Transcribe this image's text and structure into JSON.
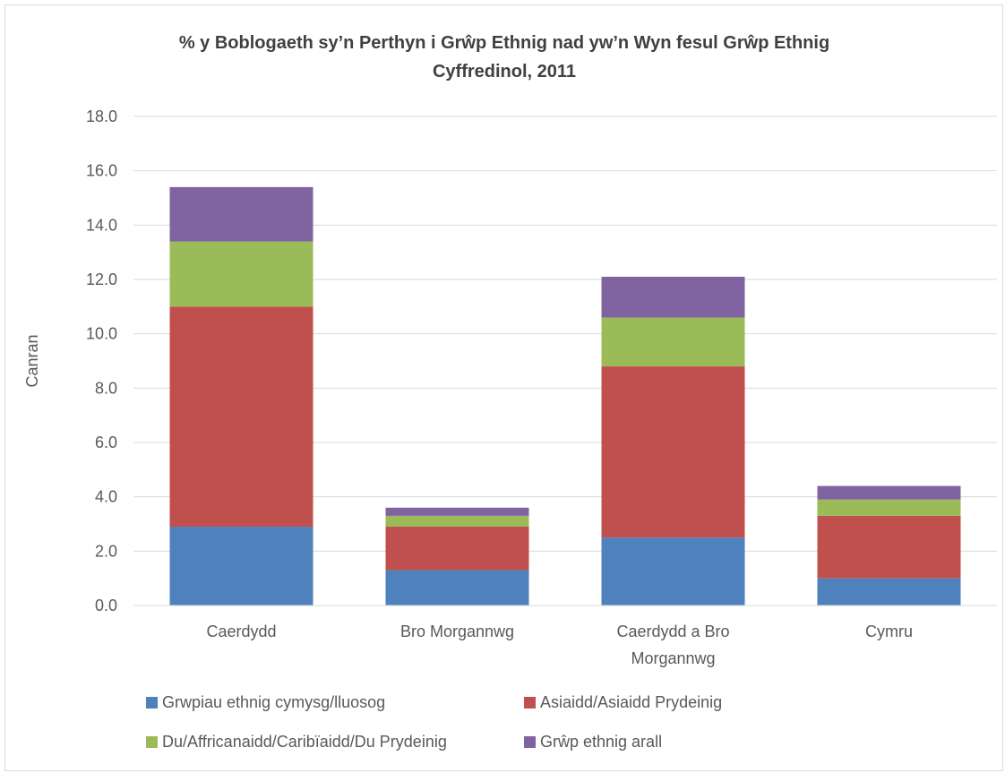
{
  "chart_data": {
    "type": "bar",
    "stacked": true,
    "title_lines": [
      "% y Boblogaeth sy’n Perthyn i Grŵp Ethnig nad yw’n Wyn fesul Grŵp Ethnig",
      "Cyffredinol, 2011"
    ],
    "ylabel": "Canran",
    "ylim": [
      0,
      18
    ],
    "yticks": [
      "0.0",
      "2.0",
      "4.0",
      "6.0",
      "8.0",
      "10.0",
      "12.0",
      "14.0",
      "16.0",
      "18.0"
    ],
    "grid": true,
    "legend_position": "bottom",
    "categories": [
      [
        "Caerdydd"
      ],
      [
        "Bro Morgannwg"
      ],
      [
        "Caerdydd a Bro",
        "Morgannwg"
      ],
      [
        "Cymru"
      ]
    ],
    "series": [
      {
        "name": "Grwpiau ethnig cymysg/lluosog",
        "color": "#4f81bd",
        "values": [
          2.9,
          1.3,
          2.5,
          1.0
        ]
      },
      {
        "name": "Asiaidd/Asiaidd Prydeinig",
        "color": "#c0504d",
        "values": [
          8.1,
          1.6,
          6.3,
          2.3
        ]
      },
      {
        "name": "Du/Affricanaidd/Caribïaidd/Du Prydeinig",
        "color": "#9bbb59",
        "values": [
          2.4,
          0.4,
          1.8,
          0.6
        ]
      },
      {
        "name": "Grŵp ethnig arall",
        "color": "#8064a2",
        "values": [
          2.0,
          0.3,
          1.5,
          0.5
        ]
      }
    ]
  }
}
